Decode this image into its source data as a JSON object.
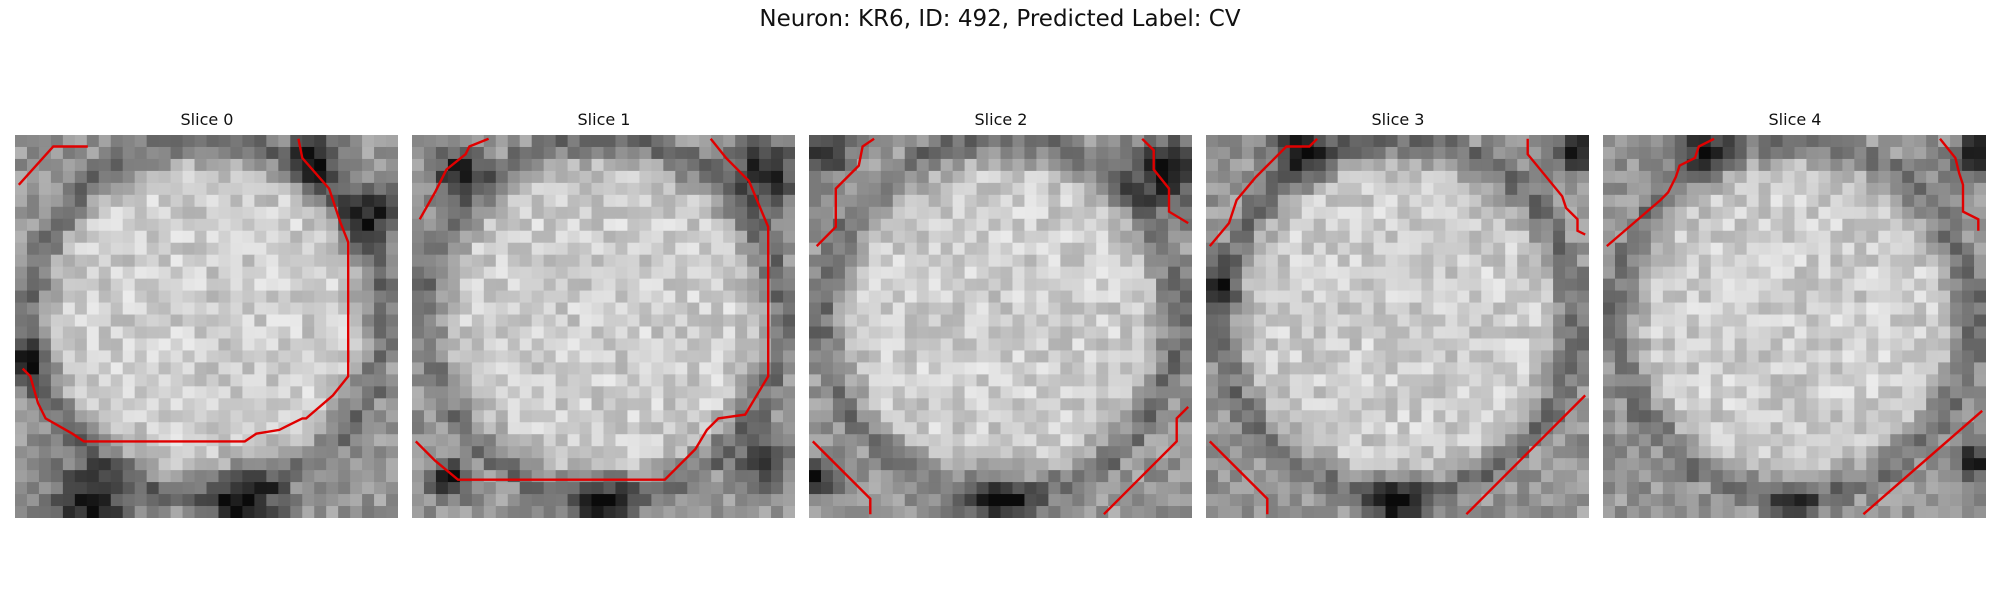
{
  "figure": {
    "title": "Neuron: KR6, ID: 492, Predicted Label: CV",
    "colormap": "gray",
    "contour_color": "#e00000"
  },
  "slices": [
    {
      "title": "Slice 0",
      "seed": 11,
      "dark_spots": [
        [
          0.93,
          0.21,
          0.07
        ],
        [
          0.78,
          0.06,
          0.06
        ],
        [
          0.6,
          0.97,
          0.1
        ],
        [
          0.2,
          0.96,
          0.1
        ],
        [
          0.02,
          0.6,
          0.06
        ]
      ],
      "contours": [
        [
          [
            0.01,
            0.13
          ],
          [
            0.1,
            0.03
          ],
          [
            0.19,
            0.03
          ]
        ],
        [
          [
            0.74,
            0.01
          ],
          [
            0.75,
            0.06
          ],
          [
            0.82,
            0.14
          ],
          [
            0.85,
            0.23
          ],
          [
            0.87,
            0.28
          ],
          [
            0.87,
            0.63
          ],
          [
            0.83,
            0.68
          ],
          [
            0.76,
            0.74
          ],
          [
            0.75,
            0.74
          ],
          [
            0.71,
            0.76
          ],
          [
            0.69,
            0.77
          ],
          [
            0.63,
            0.78
          ],
          [
            0.6,
            0.8
          ],
          [
            0.18,
            0.8
          ],
          [
            0.15,
            0.78
          ],
          [
            0.08,
            0.74
          ],
          [
            0.06,
            0.7
          ],
          [
            0.04,
            0.63
          ],
          [
            0.02,
            0.61
          ]
        ]
      ]
    },
    {
      "title": "Slice 1",
      "seed": 23,
      "dark_spots": [
        [
          0.92,
          0.1,
          0.08
        ],
        [
          0.12,
          0.1,
          0.06
        ],
        [
          0.5,
          0.98,
          0.08
        ],
        [
          0.1,
          0.9,
          0.05
        ],
        [
          0.92,
          0.85,
          0.06
        ]
      ],
      "contours": [
        [
          [
            0.02,
            0.22
          ],
          [
            0.06,
            0.15
          ],
          [
            0.09,
            0.09
          ],
          [
            0.14,
            0.05
          ],
          [
            0.15,
            0.03
          ],
          [
            0.2,
            0.01
          ]
        ],
        [
          [
            0.78,
            0.01
          ],
          [
            0.82,
            0.06
          ],
          [
            0.88,
            0.12
          ],
          [
            0.93,
            0.24
          ],
          [
            0.93,
            0.63
          ],
          [
            0.9,
            0.68
          ],
          [
            0.87,
            0.73
          ],
          [
            0.8,
            0.74
          ],
          [
            0.77,
            0.77
          ],
          [
            0.74,
            0.82
          ],
          [
            0.66,
            0.9
          ],
          [
            0.12,
            0.9
          ],
          [
            0.06,
            0.85
          ],
          [
            0.01,
            0.8
          ]
        ]
      ]
    },
    {
      "title": "Slice 2",
      "seed": 37,
      "dark_spots": [
        [
          0.93,
          0.1,
          0.09
        ],
        [
          0.05,
          0.05,
          0.05
        ],
        [
          0.5,
          0.97,
          0.08
        ],
        [
          0.02,
          0.9,
          0.05
        ]
      ],
      "contours": [
        [
          [
            0.02,
            0.29
          ],
          [
            0.07,
            0.24
          ],
          [
            0.07,
            0.14
          ],
          [
            0.13,
            0.08
          ],
          [
            0.14,
            0.03
          ],
          [
            0.17,
            0.01
          ]
        ],
        [
          [
            0.87,
            0.01
          ],
          [
            0.9,
            0.04
          ],
          [
            0.9,
            0.09
          ],
          [
            0.94,
            0.14
          ],
          [
            0.94,
            0.2
          ],
          [
            0.99,
            0.23
          ]
        ],
        [
          [
            0.01,
            0.8
          ],
          [
            0.16,
            0.95
          ],
          [
            0.16,
            0.99
          ]
        ],
        [
          [
            0.77,
            0.99
          ],
          [
            0.96,
            0.8
          ],
          [
            0.96,
            0.74
          ],
          [
            0.99,
            0.71
          ]
        ]
      ]
    },
    {
      "title": "Slice 3",
      "seed": 53,
      "dark_spots": [
        [
          0.97,
          0.04,
          0.06
        ],
        [
          0.25,
          0.03,
          0.07
        ],
        [
          0.5,
          0.97,
          0.07
        ],
        [
          0.03,
          0.4,
          0.05
        ]
      ],
      "contours": [
        [
          [
            0.01,
            0.29
          ],
          [
            0.06,
            0.23
          ],
          [
            0.08,
            0.17
          ],
          [
            0.13,
            0.11
          ],
          [
            0.16,
            0.08
          ],
          [
            0.21,
            0.03
          ],
          [
            0.27,
            0.03
          ],
          [
            0.29,
            0.01
          ]
        ],
        [
          [
            0.84,
            0.01
          ],
          [
            0.84,
            0.05
          ],
          [
            0.93,
            0.16
          ],
          [
            0.94,
            0.19
          ],
          [
            0.97,
            0.22
          ],
          [
            0.97,
            0.25
          ],
          [
            0.99,
            0.26
          ]
        ],
        [
          [
            0.01,
            0.8
          ],
          [
            0.16,
            0.95
          ],
          [
            0.16,
            0.99
          ]
        ],
        [
          [
            0.68,
            0.99
          ],
          [
            0.99,
            0.68
          ]
        ]
      ]
    },
    {
      "title": "Slice 4",
      "seed": 71,
      "dark_spots": [
        [
          0.98,
          0.05,
          0.06
        ],
        [
          0.25,
          0.02,
          0.07
        ],
        [
          0.5,
          0.98,
          0.06
        ],
        [
          0.97,
          0.85,
          0.05
        ]
      ],
      "contours": [
        [
          [
            0.01,
            0.29
          ],
          [
            0.15,
            0.17
          ],
          [
            0.17,
            0.15
          ],
          [
            0.19,
            0.11
          ],
          [
            0.2,
            0.08
          ],
          [
            0.24,
            0.06
          ],
          [
            0.25,
            0.03
          ],
          [
            0.29,
            0.01
          ]
        ],
        [
          [
            0.88,
            0.01
          ],
          [
            0.92,
            0.06
          ],
          [
            0.93,
            0.1
          ],
          [
            0.94,
            0.13
          ],
          [
            0.94,
            0.17
          ],
          [
            0.94,
            0.2
          ],
          [
            0.98,
            0.22
          ],
          [
            0.98,
            0.25
          ]
        ],
        [
          [
            0.68,
            0.99
          ],
          [
            0.99,
            0.72
          ]
        ]
      ]
    }
  ]
}
